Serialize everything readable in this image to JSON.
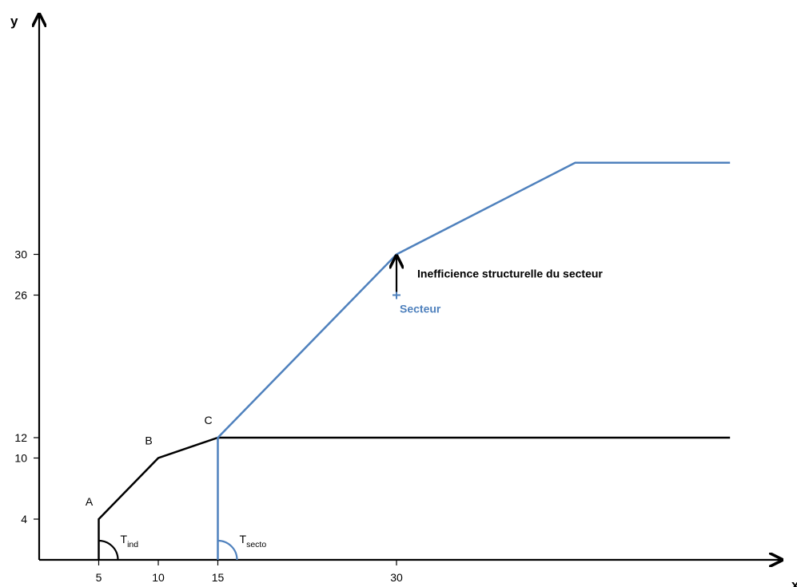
{
  "chart_data": {
    "type": "line",
    "xlabel": "x",
    "ylabel": "y",
    "x_ticks": [
      5,
      10,
      15,
      30
    ],
    "y_ticks": [
      4,
      10,
      12,
      26,
      30
    ],
    "grid": false,
    "legend": "none",
    "series": [
      {
        "key": "industry",
        "color": "#000000",
        "points": [
          [
            5,
            0
          ],
          [
            5,
            4
          ],
          [
            10,
            10
          ],
          [
            15,
            12
          ],
          [
            58,
            12
          ]
        ]
      },
      {
        "key": "sector",
        "color": "#4f81bd",
        "points": [
          [
            15,
            0
          ],
          [
            15,
            12
          ],
          [
            30,
            30
          ],
          [
            45,
            39
          ],
          [
            58,
            39
          ]
        ]
      }
    ],
    "point_labels": [
      {
        "text": "A",
        "x": 5,
        "y": 4
      },
      {
        "text": "B",
        "x": 10,
        "y": 10
      },
      {
        "text": "C",
        "x": 15,
        "y": 12
      }
    ],
    "angle_labels": [
      {
        "main": "T",
        "sub": "ind",
        "x": 5,
        "color": "#000000"
      },
      {
        "main": "T",
        "sub": "secto",
        "x": 15,
        "color": "#4f81bd"
      }
    ],
    "sector_point": {
      "text": "Secteur",
      "x": 30,
      "y": 26,
      "color": "#4f81bd"
    },
    "annotation": {
      "text": "Inefficience structurelle du secteur",
      "from": [
        30,
        26
      ],
      "to": [
        30,
        30
      ]
    }
  }
}
